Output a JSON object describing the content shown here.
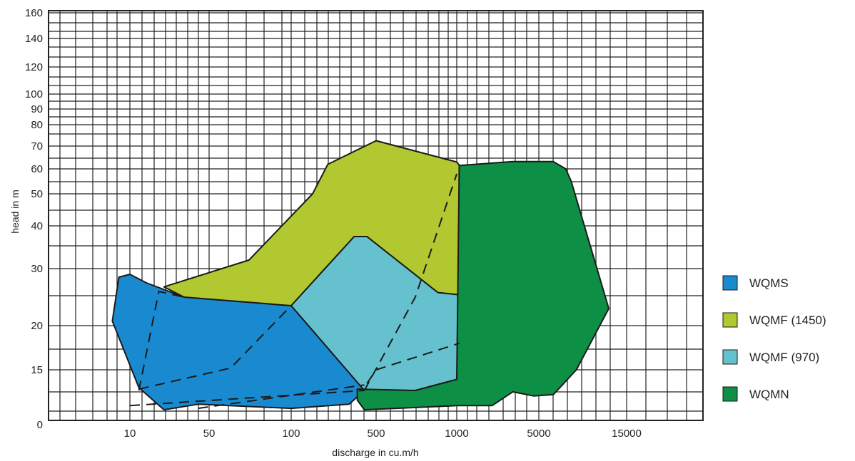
{
  "chart_data": {
    "type": "area",
    "title": "",
    "xlabel": "discharge in cu.m/h",
    "ylabel": "head in m",
    "x_tick_labels": [
      "10",
      "50",
      "100",
      "500",
      "1000",
      "5000",
      "15000"
    ],
    "y_tick_labels": [
      "0",
      "15",
      "20",
      "30",
      "40",
      "50",
      "60",
      "70",
      "80",
      "90",
      "100",
      "120",
      "140",
      "160"
    ],
    "grid": true,
    "legend": "right",
    "series": [
      {
        "name": "WQMS",
        "color": "#1a8ad0",
        "points": [
          [
            7,
            20.8
          ],
          [
            8,
            28.5
          ],
          [
            10,
            29
          ],
          [
            14,
            27.5
          ],
          [
            30,
            25
          ],
          [
            100,
            23.5
          ],
          [
            400,
            13.5
          ],
          [
            300,
            12.5
          ],
          [
            100,
            12.2
          ],
          [
            40,
            12.5
          ],
          [
            20,
            12.1
          ],
          [
            12,
            13.7
          ]
        ]
      },
      {
        "name": "WQMF (1450)",
        "color": "#b2c830",
        "points": [
          [
            20,
            26.8
          ],
          [
            70,
            32
          ],
          [
            150,
            50
          ],
          [
            200,
            62
          ],
          [
            500,
            72.5
          ],
          [
            1000,
            63
          ],
          [
            1200,
            58
          ],
          [
            1300,
            25.2
          ],
          [
            850,
            25.8
          ],
          [
            420,
            37.5
          ],
          [
            330,
            37.5
          ],
          [
            100,
            23.5
          ],
          [
            30,
            25
          ]
        ]
      },
      {
        "name": "WQMF (970)",
        "color": "#66c1cf",
        "points": [
          [
            100,
            23.5
          ],
          [
            330,
            37.5
          ],
          [
            420,
            37.5
          ],
          [
            850,
            25.8
          ],
          [
            1300,
            25.2
          ],
          [
            1000,
            14.3
          ],
          [
            700,
            13.5
          ],
          [
            400,
            13.5
          ]
        ]
      },
      {
        "name": "WQMN",
        "color": "#0d8f46",
        "points": [
          [
            1050,
            61.5
          ],
          [
            3000,
            63.2
          ],
          [
            6000,
            63.2
          ],
          [
            7000,
            60
          ],
          [
            7500,
            55
          ],
          [
            12000,
            23
          ],
          [
            8000,
            15
          ],
          [
            6000,
            13.2
          ],
          [
            4500,
            13.1
          ],
          [
            3000,
            13.4
          ],
          [
            2000,
            12.4
          ],
          [
            1000,
            12.4
          ],
          [
            400,
            12.1
          ],
          [
            350,
            12.8
          ],
          [
            350,
            13.6
          ],
          [
            700,
            13.5
          ],
          [
            1000,
            14.3
          ]
        ]
      }
    ]
  }
}
